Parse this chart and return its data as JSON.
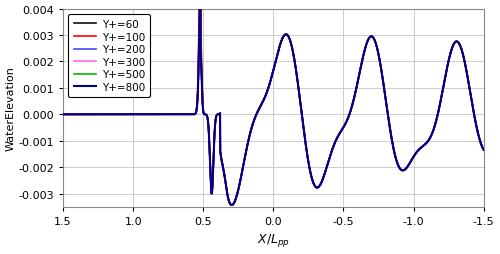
{
  "title": "",
  "xlabel": "$X/L_{pp}$",
  "ylabel": "WaterElevation",
  "xlim": [
    1.5,
    -1.5
  ],
  "ylim": [
    -0.0035,
    0.004
  ],
  "yticks": [
    -0.003,
    -0.002,
    -0.001,
    0.0,
    0.001,
    0.002,
    0.003,
    0.004
  ],
  "xticks": [
    1.5,
    1.0,
    0.5,
    0.0,
    -0.5,
    -1.0,
    -1.5
  ],
  "grid_color": "#cccccc",
  "bg_color": "#ffffff",
  "legend_entries": [
    {
      "label": "Y+=60",
      "color": "#111111",
      "lw": 1.2,
      "zorder": 5
    },
    {
      "label": "Y+=100",
      "color": "#ff0000",
      "lw": 1.2,
      "zorder": 6
    },
    {
      "label": "Y+=200",
      "color": "#4444ff",
      "lw": 1.2,
      "zorder": 4
    },
    {
      "label": "Y+=300",
      "color": "#ff66ff",
      "lw": 1.2,
      "zorder": 3
    },
    {
      "label": "Y+=500",
      "color": "#00bb00",
      "lw": 1.2,
      "zorder": 2
    },
    {
      "label": "Y+=800",
      "color": "#00008b",
      "lw": 1.5,
      "zorder": 7
    }
  ]
}
